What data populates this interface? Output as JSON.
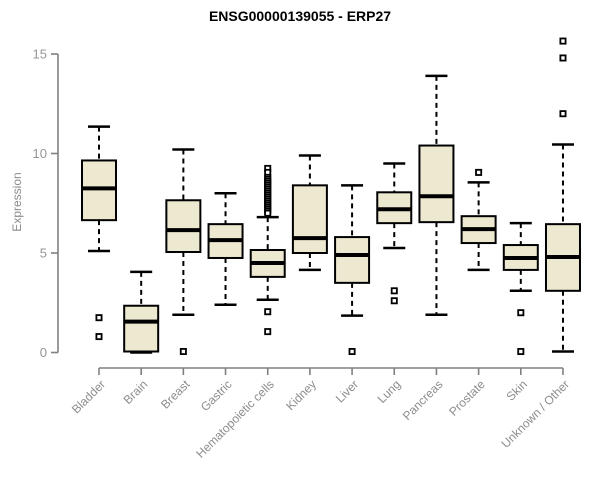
{
  "title": "ENSG00000139055 - ERP27",
  "colors": {
    "background": "#FFFFFF",
    "box_fill": "#EDE8D0",
    "box_stroke": "#000000",
    "median": "#000000",
    "whisker": "#000000",
    "outlier_stroke": "#000000",
    "axis_line": "#808080",
    "tick_text": "#969696",
    "category_text": "#8C8C8C",
    "title_text": "#000000"
  },
  "chart_data": {
    "type": "boxplot",
    "title": "ENSG00000139055 - ERP27",
    "xlabel": "",
    "ylabel": "Expression",
    "ylim": [
      0,
      15.7
    ],
    "yticks": [
      0,
      5,
      10,
      15
    ],
    "grid": false,
    "legend": "none",
    "categories": [
      "Bladder",
      "Brain",
      "Breast",
      "Gastric",
      "Hematopoietic cells",
      "Kidney",
      "Liver",
      "Lung",
      "Pancreas",
      "Prostate",
      "Skin",
      "Unknown / Other"
    ],
    "boxes": [
      {
        "category": "Bladder",
        "whisker_low": 5.1,
        "q1": 6.65,
        "median": 8.25,
        "q3": 9.65,
        "whisker_high": 11.35,
        "outliers": [
          1.75,
          0.8
        ]
      },
      {
        "category": "Brain",
        "whisker_low": 0.0,
        "q1": 0.05,
        "median": 1.55,
        "q3": 2.35,
        "whisker_high": 4.05,
        "outliers": []
      },
      {
        "category": "Breast",
        "whisker_low": 1.9,
        "q1": 5.05,
        "median": 6.15,
        "q3": 7.65,
        "whisker_high": 10.2,
        "outliers": [
          0.05
        ]
      },
      {
        "category": "Gastric",
        "whisker_low": 2.4,
        "q1": 4.75,
        "median": 5.65,
        "q3": 6.45,
        "whisker_high": 8.0,
        "outliers": []
      },
      {
        "category": "Hematopoietic cells",
        "whisker_low": 2.65,
        "q1": 3.8,
        "median": 4.5,
        "q3": 5.15,
        "whisker_high": 6.8,
        "outliers": [
          9.25,
          9.05,
          8.8,
          8.7,
          8.6,
          8.5,
          8.4,
          8.3,
          8.2,
          8.1,
          8.0,
          7.9,
          7.8,
          7.7,
          7.6,
          7.5,
          7.4,
          7.3,
          7.2,
          7.1,
          7.0,
          2.05,
          1.05
        ]
      },
      {
        "category": "Kidney",
        "whisker_low": 4.15,
        "q1": 5.0,
        "median": 5.75,
        "q3": 8.4,
        "whisker_high": 9.9,
        "outliers": []
      },
      {
        "category": "Liver",
        "whisker_low": 1.85,
        "q1": 3.5,
        "median": 4.9,
        "q3": 5.8,
        "whisker_high": 8.4,
        "outliers": [
          0.05
        ]
      },
      {
        "category": "Lung",
        "whisker_low": 5.25,
        "q1": 6.5,
        "median": 7.2,
        "q3": 8.05,
        "whisker_high": 9.5,
        "outliers": [
          3.1,
          2.6
        ]
      },
      {
        "category": "Pancreas",
        "whisker_low": 1.9,
        "q1": 6.55,
        "median": 7.85,
        "q3": 10.4,
        "whisker_high": 13.9,
        "outliers": []
      },
      {
        "category": "Prostate",
        "whisker_low": 4.15,
        "q1": 5.5,
        "median": 6.2,
        "q3": 6.85,
        "whisker_high": 8.55,
        "outliers": [
          9.05
        ]
      },
      {
        "category": "Skin",
        "whisker_low": 3.1,
        "q1": 4.15,
        "median": 4.75,
        "q3": 5.4,
        "whisker_high": 6.5,
        "outliers": [
          2.0,
          0.05
        ]
      },
      {
        "category": "Unknown / Other",
        "whisker_low": 0.05,
        "q1": 3.1,
        "median": 4.8,
        "q3": 6.45,
        "whisker_high": 10.45,
        "outliers": [
          15.65,
          14.8,
          12.0
        ]
      }
    ]
  }
}
